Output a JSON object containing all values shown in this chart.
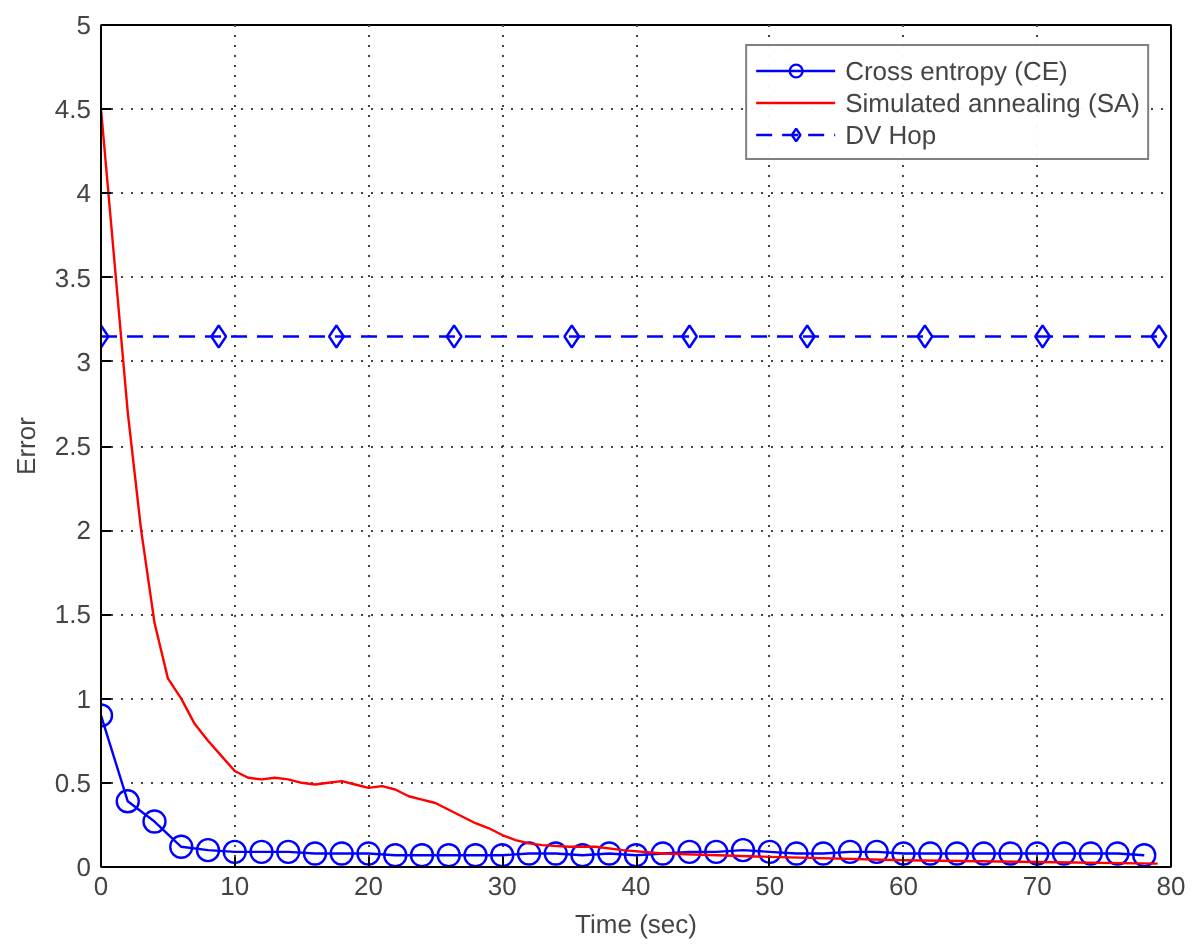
{
  "chart_data": {
    "type": "line",
    "xlabel": "Time (sec)",
    "ylabel": "Error",
    "xlim": [
      0,
      80
    ],
    "ylim": [
      0,
      5
    ],
    "xticks": [
      0,
      10,
      20,
      30,
      40,
      50,
      60,
      70,
      80
    ],
    "yticks": [
      0,
      0.5,
      1,
      1.5,
      2,
      2.5,
      3,
      3.5,
      4,
      4.5,
      5
    ],
    "grid": true,
    "legend": "top right",
    "series": [
      {
        "name": "Cross entropy (CE)",
        "color": "#0000ff",
        "marker": "circle",
        "line_style": "solid",
        "x": [
          0,
          2,
          4,
          6,
          8,
          10,
          12,
          14,
          16,
          18,
          20,
          22,
          24,
          26,
          28,
          30,
          32,
          34,
          36,
          38,
          40,
          42,
          44,
          46,
          48,
          50,
          52,
          54,
          56,
          58,
          60,
          62,
          64,
          66,
          68,
          70,
          72,
          74,
          76,
          78
        ],
        "values": [
          0.9,
          0.39,
          0.27,
          0.12,
          0.1,
          0.09,
          0.09,
          0.09,
          0.08,
          0.08,
          0.08,
          0.07,
          0.07,
          0.07,
          0.07,
          0.07,
          0.08,
          0.08,
          0.07,
          0.08,
          0.07,
          0.08,
          0.09,
          0.09,
          0.1,
          0.09,
          0.08,
          0.08,
          0.09,
          0.09,
          0.08,
          0.08,
          0.08,
          0.08,
          0.08,
          0.08,
          0.08,
          0.08,
          0.08,
          0.07
        ]
      },
      {
        "name": "Simulated annealing (SA)",
        "color": "#ff0000",
        "marker": "none",
        "line_style": "solid",
        "x": [
          0,
          1,
          2,
          3,
          4,
          5,
          6,
          7,
          8,
          9,
          10,
          11,
          12,
          13,
          14,
          15,
          16,
          17,
          18,
          19,
          20,
          21,
          22,
          23,
          24,
          25,
          26,
          27,
          28,
          29,
          30,
          31,
          32,
          33,
          35,
          37,
          39,
          42,
          50,
          60,
          70,
          79
        ],
        "values": [
          4.5,
          3.6,
          2.7,
          2.0,
          1.45,
          1.12,
          1.0,
          0.85,
          0.75,
          0.66,
          0.57,
          0.53,
          0.52,
          0.53,
          0.52,
          0.5,
          0.49,
          0.5,
          0.51,
          0.49,
          0.47,
          0.48,
          0.46,
          0.42,
          0.4,
          0.38,
          0.34,
          0.3,
          0.26,
          0.23,
          0.19,
          0.16,
          0.14,
          0.13,
          0.12,
          0.12,
          0.1,
          0.08,
          0.06,
          0.04,
          0.03,
          0.02
        ]
      },
      {
        "name": "DV Hop",
        "color": "#0000ff",
        "marker": "diamond",
        "line_style": "dashed",
        "x": [
          0,
          8.8,
          17.6,
          26.4,
          35.2,
          44,
          52.8,
          61.6,
          70.4,
          79.1
        ],
        "values": [
          3.15,
          3.15,
          3.15,
          3.15,
          3.15,
          3.15,
          3.15,
          3.15,
          3.15,
          3.15
        ]
      }
    ]
  }
}
